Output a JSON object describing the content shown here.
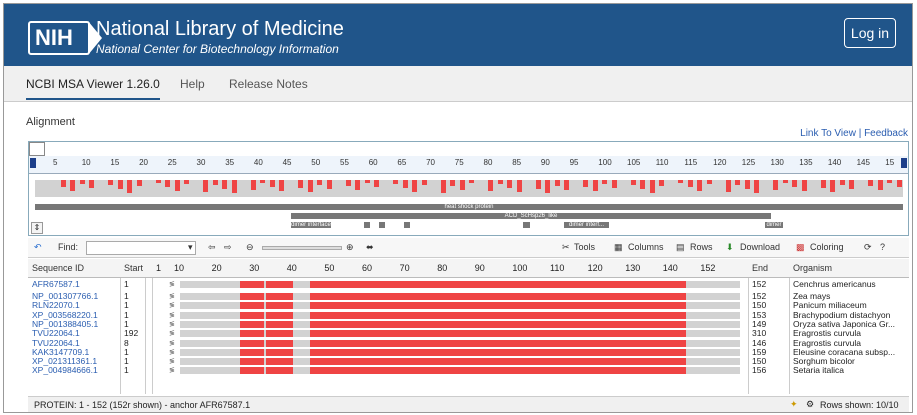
{
  "banner": {
    "logo": "NIH",
    "title": "National Library of Medicine",
    "subtitle": "National Center for Biotechnology Information",
    "login": "Log in"
  },
  "nav": {
    "tabs": [
      "NCBI MSA Viewer 1.26.0",
      "Help",
      "Release Notes"
    ]
  },
  "section_title": "Alignment",
  "links": {
    "link_to_view": "Link To View",
    "feedback": "Feedback"
  },
  "overview": {
    "ticks": [
      "5",
      "10",
      "15",
      "20",
      "25",
      "30",
      "35",
      "40",
      "45",
      "50",
      "55",
      "60",
      "65",
      "70",
      "75",
      "80",
      "85",
      "90",
      "95",
      "100",
      "105",
      "110",
      "115",
      "120",
      "125",
      "130",
      "135",
      "140",
      "145",
      "15"
    ],
    "domain_labels": [
      "heat shock protein",
      "ACD_ScHsp26_like",
      "dimer interface",
      "dimer interf...",
      "dimer interf..."
    ]
  },
  "toolbar": {
    "find_label": "Find:",
    "tools": "Tools",
    "columns": "Columns",
    "rows": "Rows",
    "download": "Download",
    "coloring": "Coloring"
  },
  "table": {
    "headers": {
      "id": "Sequence ID",
      "start": "Start",
      "end": "End",
      "organism": "Organism"
    },
    "ruler_ticks": [
      "1",
      "10",
      "20",
      "30",
      "40",
      "50",
      "60",
      "70",
      "80",
      "90",
      "100",
      "110",
      "120",
      "130",
      "140",
      "152"
    ],
    "rows": [
      {
        "id": "AFR67587.1",
        "start": "1",
        "end": "152",
        "organism": "Cenchrus americanus"
      },
      {
        "id": "NP_001307766.1",
        "start": "1",
        "end": "152",
        "organism": "Zea mays"
      },
      {
        "id": "RLN22070.1",
        "start": "1",
        "end": "150",
        "organism": "Panicum miliaceum"
      },
      {
        "id": "XP_003568220.1",
        "start": "1",
        "end": "153",
        "organism": "Brachypodium distachyon"
      },
      {
        "id": "NP_001388405.1",
        "start": "1",
        "end": "149",
        "organism": "Oryza sativa Japonica Gr..."
      },
      {
        "id": "TVU22064.1",
        "start": "192",
        "end": "310",
        "organism": "Eragrostis curvula"
      },
      {
        "id": "TVU22064.1",
        "start": "8",
        "end": "146",
        "organism": "Eragrostis curvula"
      },
      {
        "id": "KAK3147709.1",
        "start": "1",
        "end": "159",
        "organism": "Eleusine coracana subsp..."
      },
      {
        "id": "XP_021311361.1",
        "start": "1",
        "end": "150",
        "organism": "Sorghum bicolor"
      },
      {
        "id": "XP_004984666.1",
        "start": "1",
        "end": "156",
        "organism": "Setaria italica"
      }
    ]
  },
  "footer": {
    "status": "PROTEIN: 1 - 152 (152r shown) - anchor AFR67587.1",
    "rows_shown": "Rows shown: 10/10"
  },
  "colors": {
    "banner": "#20558a",
    "conserved": "#ef4444",
    "gap": "#d2d2d2"
  }
}
